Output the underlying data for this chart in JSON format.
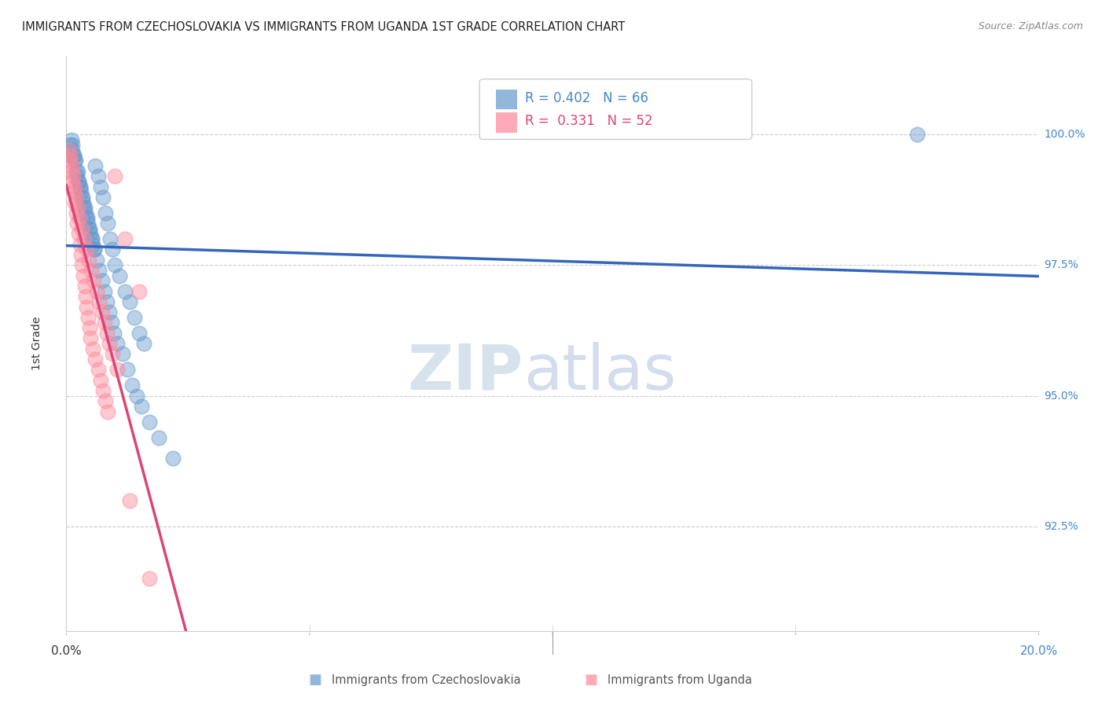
{
  "title": "IMMIGRANTS FROM CZECHOSLOVAKIA VS IMMIGRANTS FROM UGANDA 1ST GRADE CORRELATION CHART",
  "source": "Source: ZipAtlas.com",
  "ylabel": "1st Grade",
  "xlim": [
    0.0,
    20.0
  ],
  "ylim": [
    90.5,
    101.5
  ],
  "r_czech": 0.402,
  "n_czech": 66,
  "r_uganda": 0.331,
  "n_uganda": 52,
  "color_czech": "#6699cc",
  "color_uganda": "#ff8899",
  "trendline_czech": "#3366bb",
  "trendline_uganda": "#dd4477",
  "legend_czech": "Immigrants from Czechoslovakia",
  "legend_uganda": "Immigrants from Uganda",
  "background_color": "#ffffff",
  "czech_x": [
    0.08,
    0.12,
    0.15,
    0.18,
    0.2,
    0.22,
    0.25,
    0.28,
    0.3,
    0.32,
    0.35,
    0.38,
    0.4,
    0.42,
    0.45,
    0.48,
    0.5,
    0.52,
    0.55,
    0.58,
    0.6,
    0.65,
    0.7,
    0.75,
    0.8,
    0.85,
    0.9,
    0.95,
    1.0,
    1.1,
    1.2,
    1.3,
    1.4,
    1.5,
    1.6,
    0.1,
    0.13,
    0.16,
    0.19,
    0.23,
    0.26,
    0.29,
    0.33,
    0.37,
    0.43,
    0.47,
    0.53,
    0.57,
    0.63,
    0.67,
    0.73,
    0.78,
    0.83,
    0.88,
    0.93,
    0.98,
    1.05,
    1.15,
    1.25,
    1.35,
    1.45,
    1.55,
    1.7,
    1.9,
    2.2,
    17.5
  ],
  "czech_y": [
    99.8,
    99.7,
    99.6,
    99.5,
    99.3,
    99.2,
    99.1,
    99.0,
    98.9,
    98.8,
    98.7,
    98.6,
    98.5,
    98.4,
    98.3,
    98.2,
    98.1,
    98.0,
    97.9,
    97.8,
    99.4,
    99.2,
    99.0,
    98.8,
    98.5,
    98.3,
    98.0,
    97.8,
    97.5,
    97.3,
    97.0,
    96.8,
    96.5,
    96.2,
    96.0,
    99.9,
    99.8,
    99.6,
    99.5,
    99.3,
    99.1,
    99.0,
    98.8,
    98.6,
    98.4,
    98.2,
    98.0,
    97.8,
    97.6,
    97.4,
    97.2,
    97.0,
    96.8,
    96.6,
    96.4,
    96.2,
    96.0,
    95.8,
    95.5,
    95.2,
    95.0,
    94.8,
    94.5,
    94.2,
    93.8,
    100.0
  ],
  "uganda_x": [
    0.05,
    0.08,
    0.1,
    0.12,
    0.15,
    0.18,
    0.2,
    0.22,
    0.25,
    0.28,
    0.3,
    0.32,
    0.35,
    0.38,
    0.4,
    0.42,
    0.45,
    0.48,
    0.5,
    0.55,
    0.6,
    0.65,
    0.7,
    0.75,
    0.8,
    0.85,
    1.0,
    1.2,
    1.5,
    0.07,
    0.11,
    0.14,
    0.17,
    0.21,
    0.24,
    0.27,
    0.31,
    0.36,
    0.41,
    0.46,
    0.51,
    0.56,
    0.62,
    0.68,
    0.73,
    0.78,
    0.83,
    0.88,
    0.95,
    1.05,
    1.3,
    1.7
  ],
  "uganda_y": [
    99.7,
    99.5,
    99.3,
    99.1,
    98.9,
    98.7,
    98.5,
    98.3,
    98.1,
    97.9,
    97.7,
    97.5,
    97.3,
    97.1,
    96.9,
    96.7,
    96.5,
    96.3,
    96.1,
    95.9,
    95.7,
    95.5,
    95.3,
    95.1,
    94.9,
    94.7,
    99.2,
    98.0,
    97.0,
    99.6,
    99.4,
    99.2,
    99.0,
    98.8,
    98.6,
    98.4,
    98.2,
    98.0,
    97.8,
    97.6,
    97.4,
    97.2,
    97.0,
    96.8,
    96.6,
    96.4,
    96.2,
    96.0,
    95.8,
    95.5,
    93.0,
    91.5
  ]
}
